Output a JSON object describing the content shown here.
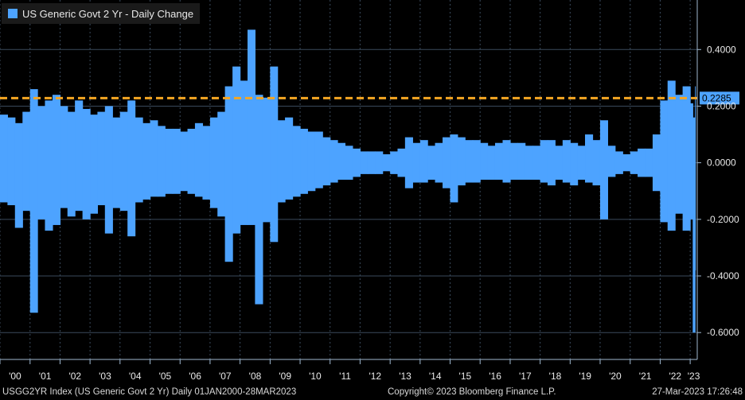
{
  "legend": {
    "label": "US Generic Govt 2 Yr - Daily Change",
    "color": "#4da3ff"
  },
  "footer": {
    "index": "USGG2YR Index (US Generic Govt 2 Yr)  Daily 01JAN2000-28MAR2023",
    "copyright": "Copyright© 2023 Bloomberg Finance L.P.",
    "timestamp": "27-Mar-2023 17:26:48"
  },
  "colors": {
    "series": "#4da3ff",
    "reference": "#f5a623",
    "grid": "#3a4a5c",
    "background": "#000000"
  },
  "chart_data": {
    "type": "bar",
    "title": "",
    "series": [
      {
        "name": "US Generic Govt 2 Yr - Daily Change",
        "x": [
          "2000-01",
          "2000-04",
          "2000-07",
          "2000-10",
          "2001-01",
          "2001-04",
          "2001-07",
          "2001-10",
          "2002-01",
          "2002-04",
          "2002-07",
          "2002-10",
          "2003-01",
          "2003-04",
          "2003-07",
          "2003-10",
          "2004-01",
          "2004-04",
          "2004-07",
          "2004-10",
          "2005-01",
          "2005-04",
          "2005-07",
          "2005-10",
          "2006-01",
          "2006-04",
          "2006-07",
          "2006-10",
          "2007-01",
          "2007-04",
          "2007-07",
          "2007-10",
          "2008-01",
          "2008-04",
          "2008-07",
          "2008-10",
          "2009-01",
          "2009-04",
          "2009-07",
          "2009-10",
          "2010-01",
          "2010-04",
          "2010-07",
          "2010-10",
          "2011-01",
          "2011-04",
          "2011-07",
          "2011-10",
          "2012-01",
          "2012-04",
          "2012-07",
          "2012-10",
          "2013-01",
          "2013-04",
          "2013-07",
          "2013-10",
          "2014-01",
          "2014-04",
          "2014-07",
          "2014-10",
          "2015-01",
          "2015-04",
          "2015-07",
          "2015-10",
          "2016-01",
          "2016-04",
          "2016-07",
          "2016-10",
          "2017-01",
          "2017-04",
          "2017-07",
          "2017-10",
          "2018-01",
          "2018-04",
          "2018-07",
          "2018-10",
          "2019-01",
          "2019-04",
          "2019-07",
          "2019-10",
          "2020-01",
          "2020-04",
          "2020-07",
          "2020-10",
          "2021-01",
          "2021-04",
          "2021-07",
          "2021-10",
          "2022-01",
          "2022-04",
          "2022-07",
          "2022-10",
          "2023-01",
          "2023-02",
          "2023-03"
        ],
        "high": [
          0.17,
          0.16,
          0.14,
          0.18,
          0.26,
          0.2,
          0.22,
          0.24,
          0.2,
          0.18,
          0.22,
          0.19,
          0.17,
          0.18,
          0.2,
          0.16,
          0.18,
          0.22,
          0.16,
          0.14,
          0.15,
          0.13,
          0.12,
          0.12,
          0.11,
          0.12,
          0.14,
          0.13,
          0.16,
          0.18,
          0.27,
          0.34,
          0.29,
          0.47,
          0.24,
          0.23,
          0.34,
          0.15,
          0.16,
          0.13,
          0.12,
          0.11,
          0.11,
          0.09,
          0.08,
          0.07,
          0.06,
          0.05,
          0.04,
          0.04,
          0.04,
          0.03,
          0.04,
          0.05,
          0.09,
          0.07,
          0.08,
          0.06,
          0.07,
          0.09,
          0.1,
          0.09,
          0.08,
          0.08,
          0.07,
          0.06,
          0.07,
          0.08,
          0.07,
          0.07,
          0.06,
          0.06,
          0.08,
          0.08,
          0.06,
          0.08,
          0.07,
          0.06,
          0.1,
          0.08,
          0.15,
          0.06,
          0.04,
          0.03,
          0.04,
          0.05,
          0.05,
          0.1,
          0.22,
          0.29,
          0.24,
          0.27,
          0.21,
          0.16,
          0.27
        ],
        "low": [
          -0.14,
          -0.15,
          -0.23,
          -0.17,
          -0.53,
          -0.2,
          -0.24,
          -0.22,
          -0.16,
          -0.19,
          -0.17,
          -0.2,
          -0.18,
          -0.15,
          -0.25,
          -0.16,
          -0.17,
          -0.26,
          -0.14,
          -0.13,
          -0.12,
          -0.12,
          -0.11,
          -0.11,
          -0.1,
          -0.11,
          -0.12,
          -0.13,
          -0.16,
          -0.19,
          -0.35,
          -0.25,
          -0.22,
          -0.22,
          -0.5,
          -0.21,
          -0.28,
          -0.14,
          -0.13,
          -0.12,
          -0.11,
          -0.1,
          -0.09,
          -0.08,
          -0.07,
          -0.06,
          -0.06,
          -0.05,
          -0.04,
          -0.04,
          -0.04,
          -0.03,
          -0.04,
          -0.05,
          -0.09,
          -0.07,
          -0.07,
          -0.06,
          -0.07,
          -0.09,
          -0.14,
          -0.08,
          -0.07,
          -0.07,
          -0.06,
          -0.06,
          -0.06,
          -0.07,
          -0.06,
          -0.06,
          -0.06,
          -0.06,
          -0.07,
          -0.08,
          -0.06,
          -0.07,
          -0.08,
          -0.06,
          -0.07,
          -0.08,
          -0.2,
          -0.05,
          -0.04,
          -0.03,
          -0.04,
          -0.05,
          -0.05,
          -0.1,
          -0.21,
          -0.24,
          -0.18,
          -0.24,
          -0.2,
          -0.6,
          -0.38
        ]
      }
    ],
    "reference_line": {
      "value": 0.2285,
      "label": "0.2285",
      "style": "dashed"
    },
    "x_tick_labels": [
      "'00",
      "'01",
      "'02",
      "'03",
      "'04",
      "'05",
      "'06",
      "'07",
      "'08",
      "'09",
      "'10",
      "'11",
      "'12",
      "'13",
      "'14",
      "'15",
      "'16",
      "'17",
      "'18",
      "'19",
      "'20",
      "'21",
      "'22",
      "'23"
    ],
    "y_tick_labels": [
      "0.4000",
      "0.2000",
      "0.0000",
      "-0.2000",
      "-0.4000",
      "-0.6000"
    ],
    "y_ticks": [
      0.4,
      0.2,
      0.0,
      -0.2,
      -0.4,
      -0.6
    ],
    "ylim": [
      -0.695,
      0.575
    ],
    "xlim": [
      "2000-01-01",
      "2023-03-28"
    ],
    "grid": true,
    "y_axis_side": "right",
    "legend_position": "top-left"
  }
}
